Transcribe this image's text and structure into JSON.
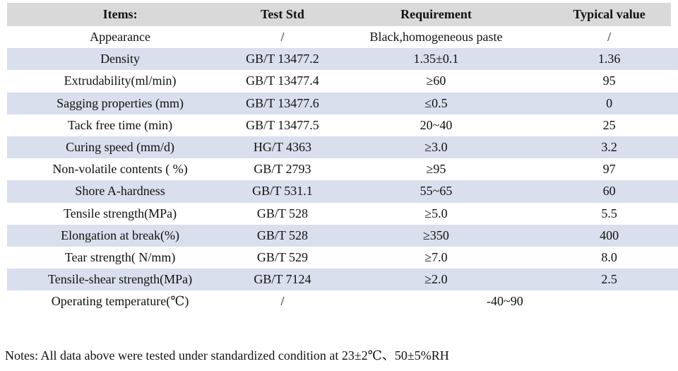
{
  "table": {
    "columns": [
      {
        "label": "Items:"
      },
      {
        "label": "Test Std"
      },
      {
        "label": "Requirement"
      },
      {
        "label": "Typical value"
      }
    ],
    "rows": [
      {
        "item": "Appearance",
        "std": "/",
        "req": "Black,homogeneous paste",
        "typical": "/"
      },
      {
        "item": "Density",
        "std": "GB/T 13477.2",
        "req": "1.35±0.1",
        "typical": "1.36"
      },
      {
        "item": "Extrudability(ml/min)",
        "std": "GB/T 13477.4",
        "req": "≥60",
        "typical": "95"
      },
      {
        "item": "Sagging properties (mm)",
        "std": "GB/T 13477.6",
        "req": "≤0.5",
        "typical": "0"
      },
      {
        "item": "Tack free time (min)",
        "std": "GB/T 13477.5",
        "req": "20~40",
        "typical": "25"
      },
      {
        "item": "Curing speed (mm/d)",
        "std": "HG/T 4363",
        "req": "≥3.0",
        "typical": "3.2"
      },
      {
        "item": "Non-volatile contents ( %)",
        "std": "GB/T 2793",
        "req": "≥95",
        "typical": "97"
      },
      {
        "item": "Shore A-hardness",
        "std": "GB/T 531.1",
        "req": "55~65",
        "typical": "60"
      },
      {
        "item": "Tensile strength(MPa)",
        "std": "GB/T 528",
        "req": "≥5.0",
        "typical": "5.5"
      },
      {
        "item": "Elongation at break(%)",
        "std": "GB/T 528",
        "req": "≥350",
        "typical": "400"
      },
      {
        "item": "Tear strength( N/mm)",
        "std": "GB/T 529",
        "req": "≥7.0",
        "typical": "8.0"
      },
      {
        "item": "Tensile-shear strength(MPa)",
        "std": "GB/T 7124",
        "req": "≥2.0",
        "typical": "2.5"
      },
      {
        "item": "Operating temperature(℃)",
        "std": "/",
        "req": "-40~90",
        "typical": "",
        "merge_req_typical": true
      }
    ],
    "colors": {
      "header_bg": "#d9d9d9",
      "stripe_bg": "#d9dfec",
      "text": "#111111"
    }
  },
  "notes": "Notes: All data above were tested under standardized condition at 23±2℃、50±5%RH"
}
